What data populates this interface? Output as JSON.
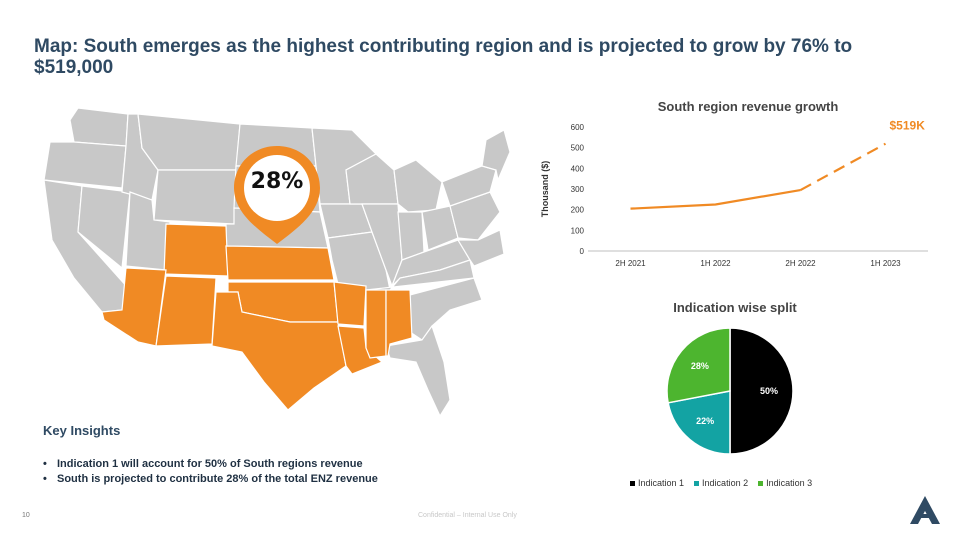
{
  "slide": {
    "title": "Map: South emerges as the highest contributing region and is projected to grow by 76% to $519,000",
    "page_number": "10",
    "confidential_note": "Confidential – Internal Use Only"
  },
  "map": {
    "highlight_percent": "28%",
    "highlight_color": "#f08a24",
    "base_color": "#c8c8c8"
  },
  "insights": {
    "heading": "Key Insights",
    "items": [
      "Indication 1 will account for  50% of South regions revenue",
      "South is projected to contribute 28% of the total ENZ revenue"
    ]
  },
  "line_chart": {
    "title": "South region revenue growth",
    "ylabel": "Thousand ($)",
    "end_label": "$519K",
    "color": "#f08a24"
  },
  "pie_chart": {
    "title": "Indication wise split"
  },
  "chart_data": [
    {
      "type": "line",
      "title": "South region revenue growth",
      "xlabel": "",
      "ylabel": "Thousand ($)",
      "categories": [
        "2H 2021",
        "1H 2022",
        "2H 2022",
        "1H 2023"
      ],
      "values": [
        205,
        225,
        295,
        519
      ],
      "projected_from_index": 2,
      "ylim": [
        0,
        600
      ],
      "yticks": [
        0,
        100,
        200,
        300,
        400,
        500,
        600
      ],
      "annotation": "$519K",
      "grid": false
    },
    {
      "type": "pie",
      "title": "Indication wise split",
      "series": [
        {
          "name": "Indication 1",
          "value": 50,
          "label": "50%",
          "color": "#000000"
        },
        {
          "name": "Indication 2",
          "value": 22,
          "label": "22%",
          "color": "#13a3a3"
        },
        {
          "name": "Indication 3",
          "value": 28,
          "label": "28%",
          "color": "#4db52f"
        }
      ],
      "legend": "bottom"
    }
  ]
}
